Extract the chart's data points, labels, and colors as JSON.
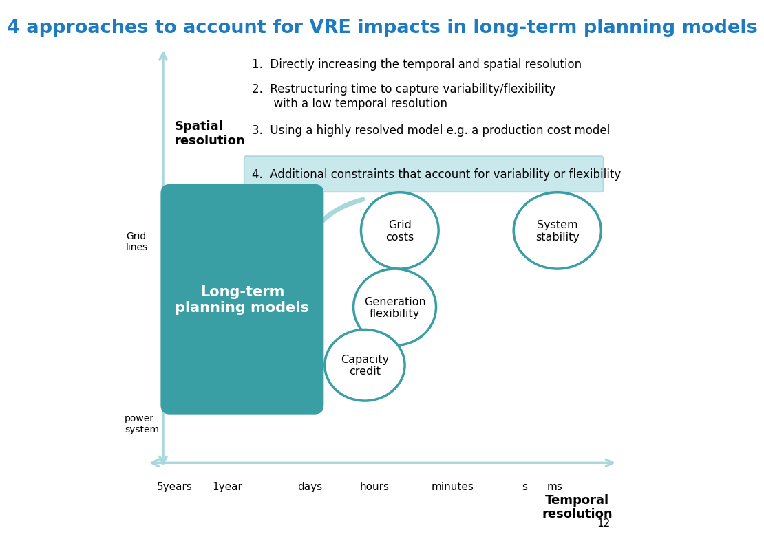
{
  "title": "4 approaches to account for VRE impacts in long-term planning models",
  "title_color": "#1F7BC0",
  "title_fontsize": 19.5,
  "background_color": "#ffffff",
  "teal_color": "#3A9EA5",
  "teal_light": "#A8D8DC",
  "highlight_bg": "#C8E8EC",
  "approach1": "1.  Directly increasing the temporal and spatial resolution",
  "approach2": "2.  Restructuring time to capture variability/flexibility\n      with a low temporal resolution",
  "approach3": "3.  Using a highly resolved model e.g. a production cost model",
  "approach4": "4.  Additional constraints that account for variability or flexibility",
  "xaxis_labels": [
    "5years",
    "1year",
    "days",
    "hours",
    "minutes",
    "s",
    "ms"
  ],
  "xaxis_label_text": "Temporal\nresolution",
  "box_label": "Long-term\nplanning models",
  "page_number": "12"
}
